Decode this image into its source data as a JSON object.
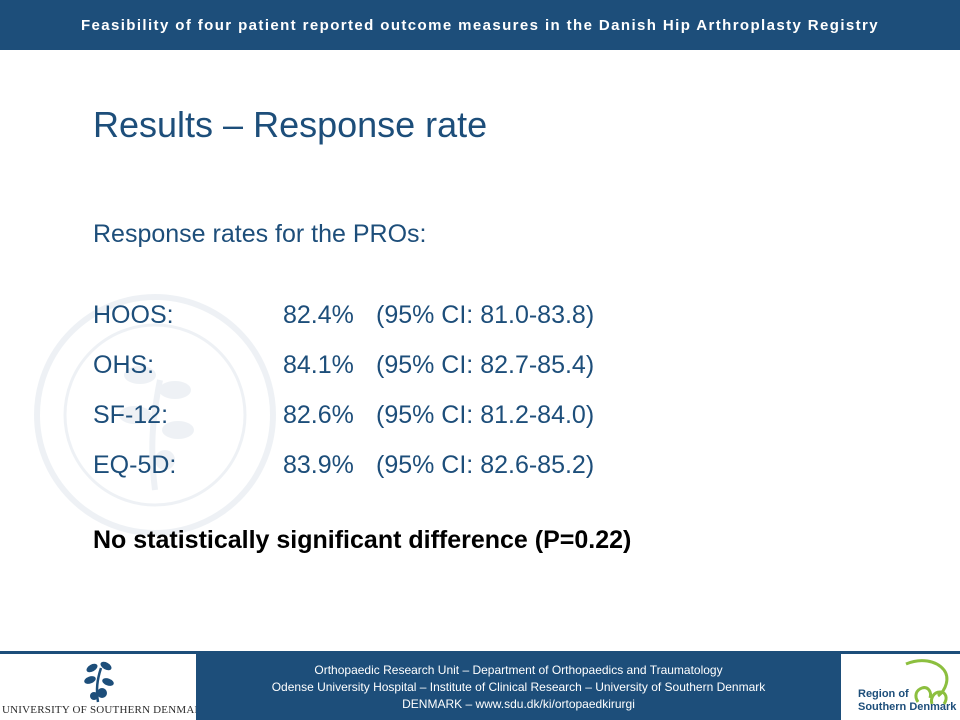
{
  "header": {
    "title": "Feasibility of four patient reported outcome measures in the Danish Hip Arthroplasty Registry"
  },
  "slide": {
    "title": "Results – Response rate",
    "subheading": "Response rates for the PROs:",
    "results": [
      {
        "name": "HOOS:",
        "rate": "82.4%",
        "ci": "(95% CI: 81.0-83.8)"
      },
      {
        "name": "OHS:",
        "rate": "84.1%",
        "ci": "(95% CI: 82.7-85.4)"
      },
      {
        "name": "SF-12:",
        "rate": "82.6%",
        "ci": "(95% CI: 81.2-84.0)"
      },
      {
        "name": "EQ-5D:",
        "rate": "83.9%",
        "ci": "(95% CI: 82.6-85.2)"
      }
    ],
    "conclusion": "No statistically significant difference (P=0.22)"
  },
  "footer": {
    "line1": "Orthopaedic Research Unit – Department of Orthopaedics and Traumatology",
    "line2": "Odense University Hospital – Institute of Clinical Research – University of Southern Denmark",
    "line3": "DENMARK – www.sdu.dk/ki/ortopaedkirurgi",
    "left_logo_text": "UNIVERSITY OF SOUTHERN DENMARK",
    "right_logo_line1": "Region of",
    "right_logo_line2": "Southern Denmark"
  },
  "colors": {
    "brand_blue": "#1d4e7a",
    "text_black": "#000000",
    "region_green": "#8cbf3f"
  },
  "icons": {
    "watermark": "university-seal-icon",
    "left_logo": "tree-logo-icon",
    "right_logo": "region-logo-icon"
  }
}
